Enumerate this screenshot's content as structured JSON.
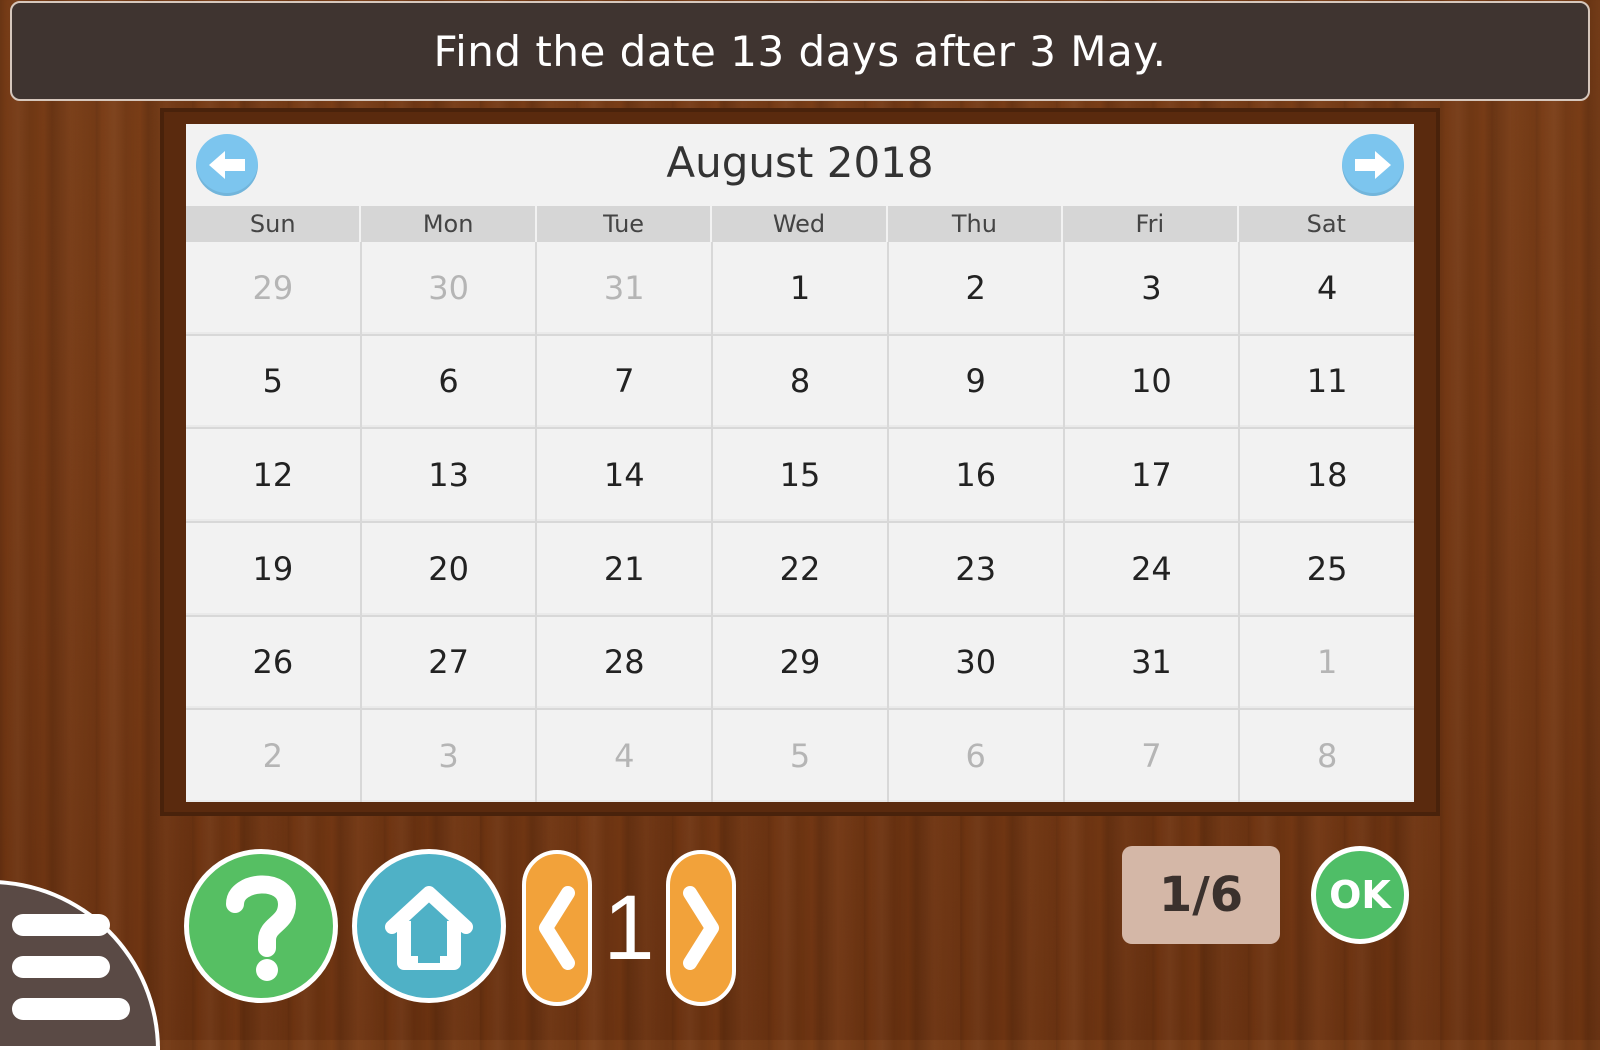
{
  "prompt": {
    "text": "Find the date 13 days after 3 May."
  },
  "calendar": {
    "month_title": "August 2018",
    "prev_icon": "arrow-left-icon",
    "next_icon": "arrow-right-icon",
    "weekdays": [
      "Sun",
      "Mon",
      "Tue",
      "Wed",
      "Thu",
      "Fri",
      "Sat"
    ],
    "rows": [
      [
        {
          "label": "29",
          "in_month": false
        },
        {
          "label": "30",
          "in_month": false
        },
        {
          "label": "31",
          "in_month": false
        },
        {
          "label": "1",
          "in_month": true
        },
        {
          "label": "2",
          "in_month": true
        },
        {
          "label": "3",
          "in_month": true
        },
        {
          "label": "4",
          "in_month": true
        }
      ],
      [
        {
          "label": "5",
          "in_month": true
        },
        {
          "label": "6",
          "in_month": true
        },
        {
          "label": "7",
          "in_month": true
        },
        {
          "label": "8",
          "in_month": true
        },
        {
          "label": "9",
          "in_month": true
        },
        {
          "label": "10",
          "in_month": true
        },
        {
          "label": "11",
          "in_month": true
        }
      ],
      [
        {
          "label": "12",
          "in_month": true
        },
        {
          "label": "13",
          "in_month": true
        },
        {
          "label": "14",
          "in_month": true
        },
        {
          "label": "15",
          "in_month": true
        },
        {
          "label": "16",
          "in_month": true
        },
        {
          "label": "17",
          "in_month": true
        },
        {
          "label": "18",
          "in_month": true
        }
      ],
      [
        {
          "label": "19",
          "in_month": true
        },
        {
          "label": "20",
          "in_month": true
        },
        {
          "label": "21",
          "in_month": true
        },
        {
          "label": "22",
          "in_month": true
        },
        {
          "label": "23",
          "in_month": true
        },
        {
          "label": "24",
          "in_month": true
        },
        {
          "label": "25",
          "in_month": true
        }
      ],
      [
        {
          "label": "26",
          "in_month": true
        },
        {
          "label": "27",
          "in_month": true
        },
        {
          "label": "28",
          "in_month": true
        },
        {
          "label": "29",
          "in_month": true
        },
        {
          "label": "30",
          "in_month": true
        },
        {
          "label": "31",
          "in_month": true
        },
        {
          "label": "1",
          "in_month": false
        }
      ],
      [
        {
          "label": "2",
          "in_month": false
        },
        {
          "label": "3",
          "in_month": false
        },
        {
          "label": "4",
          "in_month": false
        },
        {
          "label": "5",
          "in_month": false
        },
        {
          "label": "6",
          "in_month": false
        },
        {
          "label": "7",
          "in_month": false
        },
        {
          "label": "8",
          "in_month": false
        }
      ]
    ]
  },
  "controls": {
    "menu_icon": "hamburger-menu-icon",
    "help_icon": "question-icon",
    "home_icon": "home-icon",
    "pager_prev_icon": "chevron-left-icon",
    "pager_next_icon": "chevron-right-icon",
    "page_number": "1",
    "progress": "1/6",
    "ok_label": "OK"
  },
  "colors": {
    "wood": "#7a3c16",
    "banner": "#3f3430",
    "calendar_bg": "#f2f2f2",
    "nav_blue": "#7cc5ee",
    "help_green": "#56bf63",
    "home_teal": "#4fb1c6",
    "pager_orange": "#f2a23a",
    "progress_bg": "#d4b7a7",
    "ok_green": "#4fbe67"
  }
}
